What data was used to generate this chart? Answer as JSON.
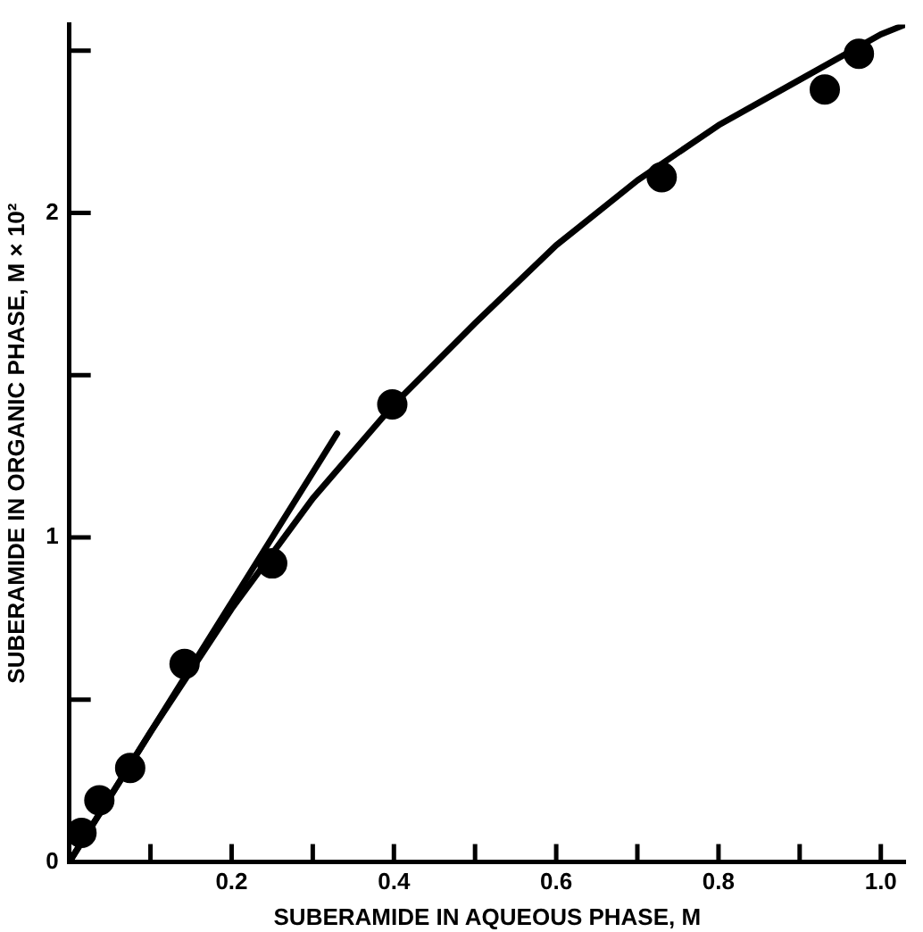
{
  "chart_data": {
    "type": "scatter",
    "xlabel": "SUBERAMIDE IN AQUEOUS PHASE, M",
    "ylabel": "SUBERAMIDE IN ORGANIC PHASE, M × 10²",
    "xlim": [
      0,
      1.03
    ],
    "ylim": [
      0,
      2.58
    ],
    "xticks": [
      {
        "value": 0.1,
        "label": null
      },
      0.2,
      {
        "value": 0.3,
        "label": null
      },
      0.4,
      {
        "value": 0.5,
        "label": null
      },
      0.6,
      {
        "value": 0.7,
        "label": null
      },
      0.8,
      {
        "value": 0.9,
        "label": null
      },
      {
        "value": 1.0,
        "label": "1.0"
      }
    ],
    "yticks": [
      0,
      {
        "value": 0.5,
        "label": null
      },
      1,
      {
        "value": 1.5,
        "label": null
      },
      2,
      {
        "value": 2.5,
        "label": null
      }
    ],
    "grid": false,
    "legend": false,
    "marker": "circle",
    "series": [
      {
        "color": "#000000",
        "x": [
          0.015,
          0.037,
          0.075,
          0.142,
          0.25,
          0.398,
          0.73,
          0.931,
          0.973
        ],
        "values": [
          0.09,
          0.19,
          0.29,
          0.61,
          0.92,
          1.41,
          2.11,
          2.38,
          2.49
        ]
      },
      {
        "type": "line",
        "color": "#000000",
        "marker": "none",
        "x": [
          0,
          0.1,
          0.2,
          0.3,
          0.4,
          0.5,
          0.6,
          0.7,
          0.8,
          0.9,
          1.0,
          1.03
        ],
        "values": [
          0,
          0.4,
          0.78,
          1.12,
          1.41,
          1.66,
          1.9,
          2.1,
          2.27,
          2.41,
          2.55,
          2.58
        ]
      },
      {
        "type": "line",
        "color": "#000000",
        "marker": "none",
        "x": [
          0,
          0.33
        ],
        "values": [
          0,
          1.32
        ]
      }
    ]
  }
}
